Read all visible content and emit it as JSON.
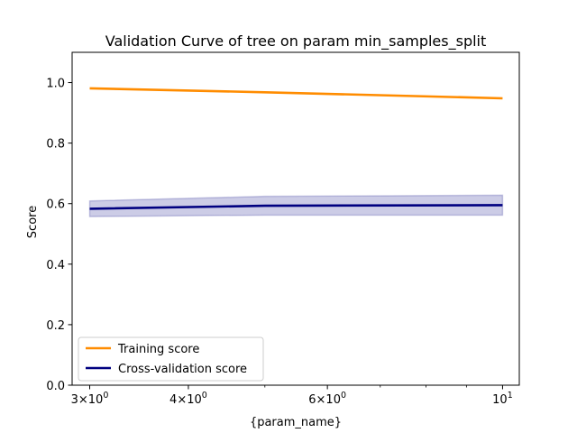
{
  "chart_data": {
    "type": "line",
    "title": "Validation Curve of tree on param min_samples_split",
    "xlabel": "{param_name}",
    "ylabel": "Score",
    "xscale": "log",
    "xlim": [
      2.85,
      10.5
    ],
    "ylim": [
      0.0,
      1.1
    ],
    "grid": false,
    "legend_position": "lower-left",
    "x": [
      3,
      5,
      10
    ],
    "x_ticks": [
      {
        "value": 3,
        "base": "3×10",
        "exp": "0"
      },
      {
        "value": 4,
        "base": "4×10",
        "exp": "0"
      },
      {
        "value": 6,
        "base": "6×10",
        "exp": "0"
      },
      {
        "value": 10,
        "base": "10",
        "exp": "1"
      }
    ],
    "x_minor_ticks": [
      5,
      7,
      8,
      9
    ],
    "y_ticks": [
      "0.0",
      "0.2",
      "0.4",
      "0.6",
      "0.8",
      "1.0"
    ],
    "series": [
      {
        "name": "Training score",
        "color": "#ff8c00",
        "values": [
          0.981,
          0.968,
          0.948
        ],
        "band_lower": [
          0.981,
          0.968,
          0.948
        ],
        "band_upper": [
          0.981,
          0.968,
          0.948
        ]
      },
      {
        "name": "Cross-validation score",
        "color": "#000080",
        "values": [
          0.583,
          0.593,
          0.595
        ],
        "band_lower": [
          0.557,
          0.562,
          0.562
        ],
        "band_upper": [
          0.609,
          0.624,
          0.628
        ]
      }
    ]
  }
}
